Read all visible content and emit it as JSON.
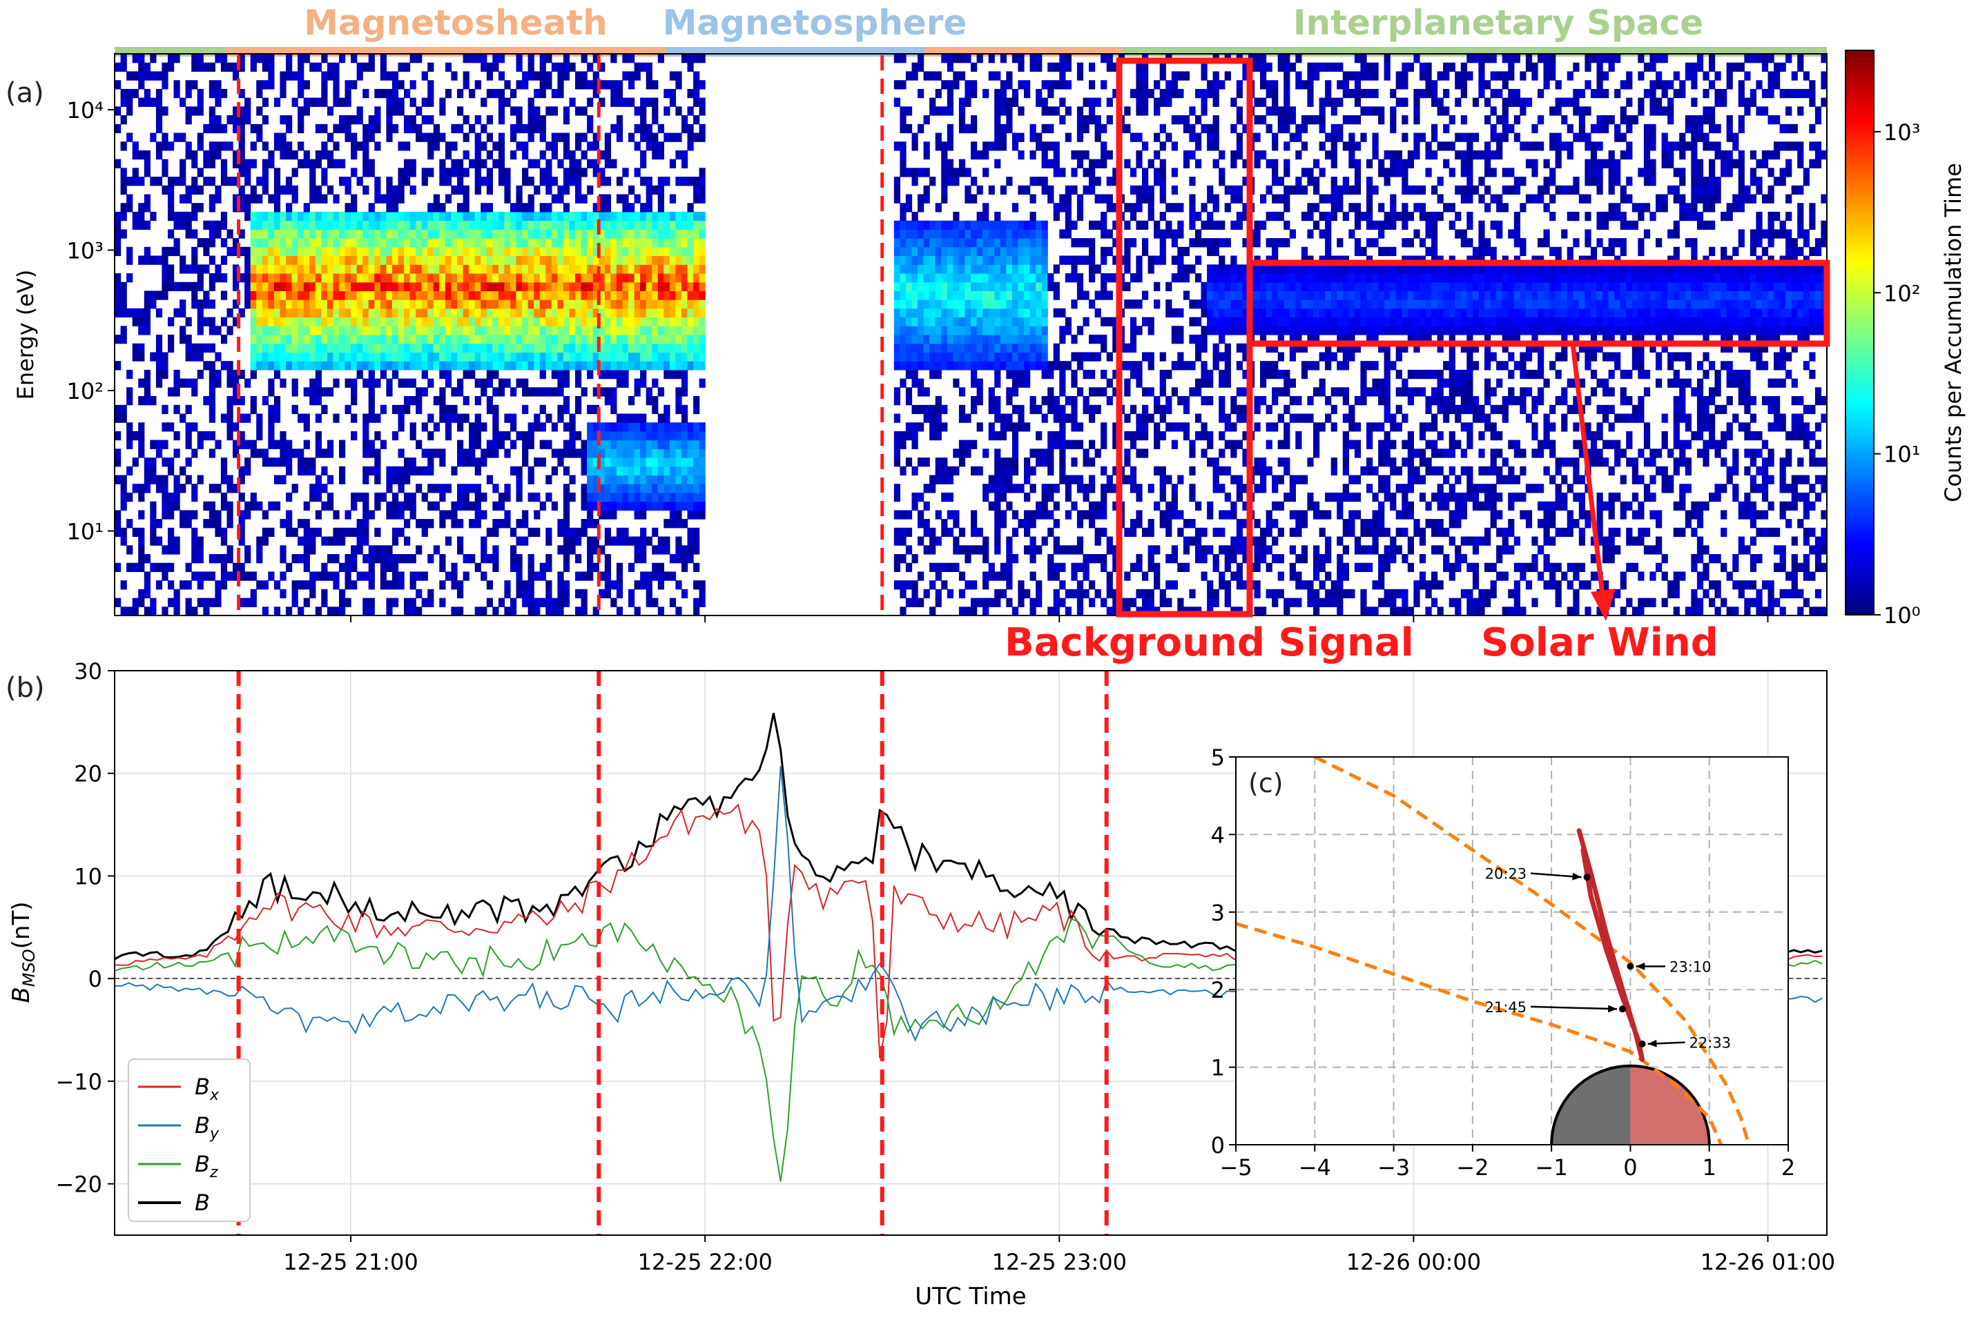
{
  "figure": {
    "panel_a_label": "(a)",
    "panel_b_label": "(b)",
    "panel_c_label": "(c)"
  },
  "regions": [
    {
      "label": "Magnetosheath",
      "color": "#f4b183"
    },
    {
      "label": "Magnetosphere",
      "color": "#9dc3e6"
    },
    {
      "label": "Interplanetary Space",
      "color": "#a9d18e"
    }
  ],
  "annotations": {
    "background_signal": "Background Signal",
    "solar_wind": "Solar Wind",
    "color": "#ff1a1a"
  },
  "chart_data": [
    {
      "type": "heatmap",
      "panel": "a",
      "ylabel": "Energy (eV)",
      "yscale": "log",
      "ylim": [
        2.5,
        25000
      ],
      "yticks": [
        "10¹",
        "10²",
        "10³",
        "10⁴"
      ],
      "colorbar": {
        "label": "Counts per Accumulation Time",
        "scale": "log",
        "range": [
          1,
          3200
        ],
        "ticks": [
          "10⁰",
          "10¹",
          "10²",
          "10³"
        ],
        "colormap": "jet"
      },
      "x_time_range": [
        "12-25 20:20",
        "12-26 01:10"
      ],
      "data_gap": [
        "12-25 22:00",
        "12-25 22:32"
      ],
      "features": [
        {
          "name": "sheath ions",
          "time": [
            "20:43",
            "22:06"
          ],
          "energy_eV": [
            150,
            2000
          ],
          "peak_counts": 1000
        },
        {
          "name": "low-energy ions",
          "time": [
            "21:40",
            "22:06"
          ],
          "energy_eV": [
            15,
            60
          ],
          "peak_counts": 20
        },
        {
          "name": "post-gap ions",
          "time": [
            "22:32",
            "22:58"
          ],
          "energy_eV": [
            150,
            1600
          ],
          "peak_counts": 30
        },
        {
          "name": "solar wind beam",
          "time": [
            "23:25",
            "01:10"
          ],
          "energy_eV": [
            250,
            800
          ],
          "peak_counts": 5
        }
      ]
    },
    {
      "type": "line",
      "panel": "b",
      "xlabel": "UTC Time",
      "ylabel": "B_MSO(nT)",
      "ylim": [
        -25,
        30
      ],
      "yticks": [
        -20,
        -10,
        0,
        10,
        20,
        30
      ],
      "xticks": [
        "12-25 21:00",
        "12-25 22:00",
        "12-25 23:00",
        "12-26 00:00",
        "12-26 01:00"
      ],
      "grid": true,
      "legend": "lower-left",
      "boundaries": [
        "20:41",
        "21:42",
        "22:30",
        "23:08"
      ],
      "series": [
        {
          "name": "Bx",
          "label_main": "B",
          "label_sub": "x",
          "color": "#d62728",
          "points": [
            [
              "20:20",
              1.5
            ],
            [
              "20:35",
              2.0
            ],
            [
              "20:40",
              4.5
            ],
            [
              "20:45",
              7.5
            ],
            [
              "20:55",
              6.5
            ],
            [
              "21:05",
              5.0
            ],
            [
              "21:20",
              5.0
            ],
            [
              "21:35",
              6.0
            ],
            [
              "21:45",
              10.0
            ],
            [
              "21:55",
              15.0
            ],
            [
              "22:05",
              16.5
            ],
            [
              "22:10",
              13.0
            ],
            [
              "22:12",
              -8.0
            ],
            [
              "22:15",
              12.0
            ],
            [
              "22:20",
              8.0
            ],
            [
              "22:28",
              10.0
            ],
            [
              "22:30",
              -12.0
            ],
            [
              "22:32",
              8.0
            ],
            [
              "22:40",
              6.0
            ],
            [
              "22:50",
              5.0
            ],
            [
              "23:00",
              6.5
            ],
            [
              "23:08",
              2.0
            ],
            [
              "23:30",
              2.2
            ],
            [
              "00:00",
              2.0
            ],
            [
              "00:30",
              2.2
            ],
            [
              "01:00",
              2.0
            ],
            [
              "01:10",
              2.0
            ]
          ]
        },
        {
          "name": "By",
          "label_main": "B",
          "label_sub": "y",
          "color": "#1f77b4",
          "points": [
            [
              "20:20",
              -0.5
            ],
            [
              "20:40",
              -1.5
            ],
            [
              "20:50",
              -4.0
            ],
            [
              "21:00",
              -5.0
            ],
            [
              "21:10",
              -3.0
            ],
            [
              "21:20",
              -2.5
            ],
            [
              "21:35",
              -1.5
            ],
            [
              "21:45",
              -3.0
            ],
            [
              "21:55",
              -1.0
            ],
            [
              "22:05",
              0.0
            ],
            [
              "22:10",
              -2.0
            ],
            [
              "22:13",
              21.0
            ],
            [
              "22:16",
              -5.0
            ],
            [
              "22:22",
              -2.0
            ],
            [
              "22:30",
              1.0
            ],
            [
              "22:35",
              -5.0
            ],
            [
              "22:45",
              -4.0
            ],
            [
              "22:55",
              -2.0
            ],
            [
              "23:05",
              -1.0
            ],
            [
              "23:30",
              -1.5
            ],
            [
              "00:00",
              -1.0
            ],
            [
              "00:30",
              -1.5
            ],
            [
              "01:00",
              -2.0
            ],
            [
              "01:10",
              -2.0
            ]
          ]
        },
        {
          "name": "Bz",
          "label_main": "B",
          "label_sub": "z",
          "color": "#2ca02c",
          "points": [
            [
              "20:20",
              1.0
            ],
            [
              "20:35",
              1.5
            ],
            [
              "20:45",
              3.5
            ],
            [
              "20:55",
              4.5
            ],
            [
              "21:05",
              2.5
            ],
            [
              "21:20",
              1.5
            ],
            [
              "21:35",
              2.5
            ],
            [
              "21:45",
              5.0
            ],
            [
              "21:55",
              1.0
            ],
            [
              "22:05",
              -2.0
            ],
            [
              "22:10",
              -8.0
            ],
            [
              "22:13",
              -22.0
            ],
            [
              "22:16",
              0.0
            ],
            [
              "22:22",
              -2.0
            ],
            [
              "22:28",
              3.0
            ],
            [
              "22:32",
              -5.0
            ],
            [
              "22:42",
              -4.0
            ],
            [
              "22:52",
              -2.0
            ],
            [
              "23:00",
              5.0
            ],
            [
              "23:08",
              4.0
            ],
            [
              "23:15",
              1.5
            ],
            [
              "23:30",
              1.0
            ],
            [
              "00:00",
              1.2
            ],
            [
              "00:30",
              1.0
            ],
            [
              "01:00",
              1.5
            ],
            [
              "01:10",
              1.5
            ]
          ]
        },
        {
          "name": "B",
          "label_main": "B",
          "label_sub": "",
          "color": "#000000",
          "points": [
            [
              "20:20",
              2.2
            ],
            [
              "20:35",
              2.5
            ],
            [
              "20:40",
              5.0
            ],
            [
              "20:45",
              9.0
            ],
            [
              "20:55",
              8.5
            ],
            [
              "21:05",
              6.5
            ],
            [
              "21:20",
              6.5
            ],
            [
              "21:35",
              7.0
            ],
            [
              "21:45",
              11.0
            ],
            [
              "21:55",
              16.0
            ],
            [
              "22:05",
              17.5
            ],
            [
              "22:10",
              22.0
            ],
            [
              "22:12",
              26.0
            ],
            [
              "22:15",
              12.0
            ],
            [
              "22:20",
              10.0
            ],
            [
              "22:28",
              11.0
            ],
            [
              "22:30",
              16.0
            ],
            [
              "22:35",
              12.0
            ],
            [
              "22:45",
              11.0
            ],
            [
              "22:55",
              8.0
            ],
            [
              "23:00",
              8.0
            ],
            [
              "23:08",
              4.0
            ],
            [
              "23:30",
              3.0
            ],
            [
              "00:00",
              2.7
            ],
            [
              "00:30",
              2.8
            ],
            [
              "01:00",
              2.6
            ],
            [
              "01:10",
              2.6
            ]
          ]
        }
      ]
    },
    {
      "type": "line",
      "panel": "c",
      "xlim": [
        -5,
        2
      ],
      "ylim": [
        0,
        5
      ],
      "xticks": [
        -5,
        -4,
        -3,
        -2,
        -1,
        0,
        1,
        2
      ],
      "yticks": [
        0,
        1,
        2,
        3,
        4,
        5
      ],
      "grid": true,
      "boundaries": [
        {
          "name": "bow shock",
          "color": "#ff7f0e",
          "points": [
            [
              -4.0,
              5.0
            ],
            [
              -3.0,
              4.5
            ],
            [
              -2.0,
              3.8
            ],
            [
              -1.0,
              3.1
            ],
            [
              0.0,
              2.35
            ],
            [
              0.7,
              1.6
            ],
            [
              1.2,
              0.8
            ],
            [
              1.4,
              0.35
            ],
            [
              1.5,
              0.0
            ]
          ]
        },
        {
          "name": "magnetopause",
          "color": "#ff7f0e",
          "points": [
            [
              -5.0,
              2.85
            ],
            [
              -4.0,
              2.55
            ],
            [
              -3.0,
              2.2
            ],
            [
              -2.0,
              1.85
            ],
            [
              -1.0,
              1.55
            ],
            [
              0.0,
              1.2
            ],
            [
              0.6,
              0.75
            ],
            [
              1.0,
              0.35
            ],
            [
              1.15,
              0.0
            ]
          ]
        }
      ],
      "trajectory": {
        "color": "#c1272d",
        "points": [
          [
            -0.65,
            4.05
          ],
          [
            -0.5,
            3.5
          ],
          [
            -0.3,
            2.7
          ],
          [
            -0.1,
            2.0
          ],
          [
            0.05,
            1.5
          ],
          [
            0.15,
            1.1
          ],
          [
            0.1,
            1.35
          ],
          [
            -0.1,
            1.9
          ],
          [
            -0.3,
            2.5
          ],
          [
            -0.5,
            3.2
          ],
          [
            -0.6,
            3.8
          ]
        ]
      },
      "planet": {
        "radius": 1,
        "night_color": "#6f6f6f",
        "day_color": "#d26e6e"
      },
      "time_marks": [
        {
          "label": "20:23",
          "point": [
            -0.55,
            3.45
          ],
          "label_at": [
            -1.7,
            3.5
          ]
        },
        {
          "label": "23:10",
          "point": [
            0.0,
            2.3
          ],
          "label_at": [
            0.95,
            2.3
          ]
        },
        {
          "label": "21:45",
          "point": [
            -0.1,
            1.75
          ],
          "label_at": [
            -1.7,
            1.78
          ]
        },
        {
          "label": "22:33",
          "point": [
            0.15,
            1.3
          ],
          "label_at": [
            1.2,
            1.32
          ]
        }
      ]
    }
  ]
}
